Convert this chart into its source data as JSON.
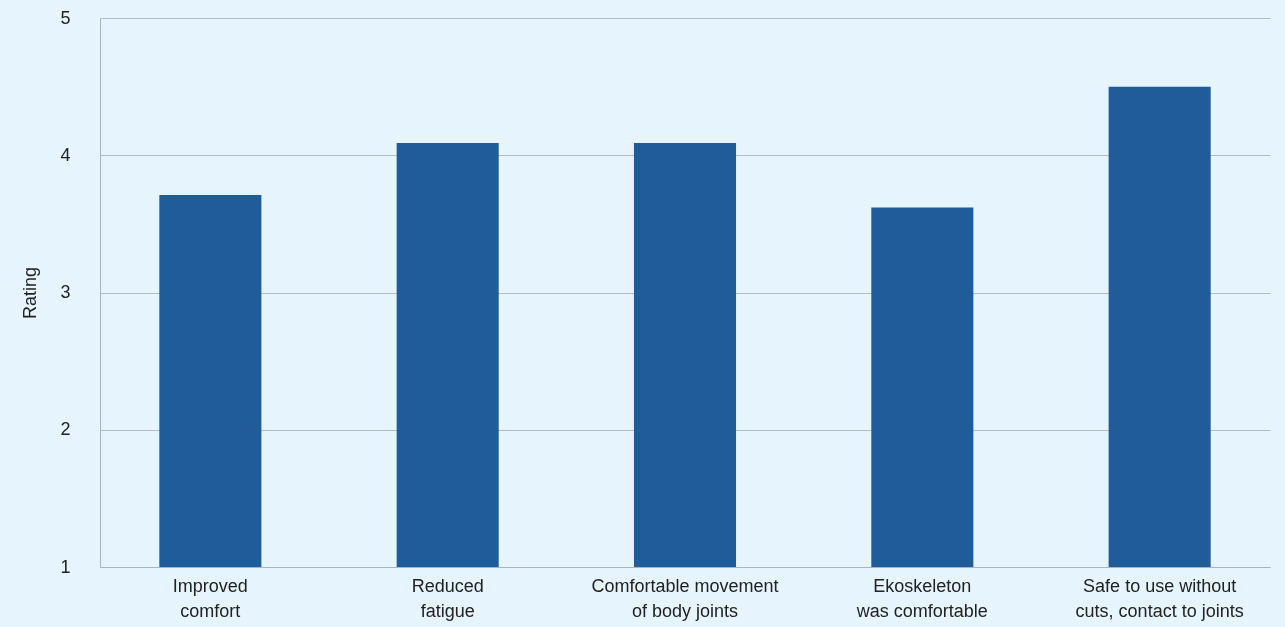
{
  "chart_data": {
    "type": "bar",
    "ylabel": "Rating",
    "categories": [
      "Improved comfort",
      "Reduced fatigue",
      "Comfortable movement of body joints",
      "Ekoskeleton was comfortable",
      "Safe to use without cuts, contact to joints"
    ],
    "values": [
      3.71,
      4.09,
      4.09,
      3.62,
      4.5
    ],
    "color": "#1f5c99",
    "ylim": [
      1,
      5
    ],
    "yticks": [
      1,
      2,
      3,
      4,
      5
    ],
    "grid": "y"
  }
}
